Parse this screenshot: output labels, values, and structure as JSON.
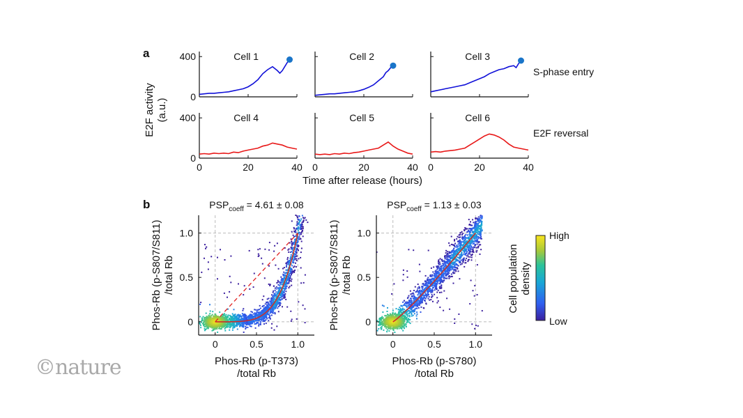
{
  "watermark": "©nature",
  "colors": {
    "sphase": "#1010d8",
    "reversal": "#e81818",
    "endpoint": "#1a75c9",
    "fit": "#cc2b2b",
    "dashed": "#e02020"
  },
  "chart_data": [
    {
      "panel": "a",
      "type": "line",
      "ylabel": "E2F activity\n(a.u.)",
      "xlabel": "Time after release (hours)",
      "xlim": [
        0,
        40
      ],
      "ylim": [
        0,
        450
      ],
      "xticks": [
        0,
        20,
        40
      ],
      "yticks": [
        0,
        400
      ],
      "row_labels": [
        "S-phase entry",
        "E2F reversal"
      ],
      "cells": [
        {
          "label": "Cell 1",
          "row": 0,
          "color": "sphase",
          "endpoint": [
            37,
            370
          ],
          "x": [
            0,
            2,
            4,
            6,
            8,
            10,
            12,
            14,
            16,
            18,
            20,
            22,
            24,
            26,
            28,
            30,
            32,
            33,
            34,
            35,
            36,
            37
          ],
          "y": [
            25,
            30,
            35,
            35,
            40,
            45,
            50,
            60,
            70,
            80,
            100,
            130,
            170,
            230,
            270,
            300,
            260,
            235,
            260,
            300,
            340,
            370
          ]
        },
        {
          "label": "Cell 2",
          "row": 0,
          "color": "sphase",
          "endpoint": [
            32,
            310
          ],
          "x": [
            0,
            2,
            4,
            6,
            8,
            10,
            12,
            14,
            16,
            18,
            20,
            22,
            24,
            26,
            28,
            29,
            30,
            31,
            32
          ],
          "y": [
            15,
            20,
            25,
            30,
            30,
            35,
            40,
            45,
            50,
            60,
            75,
            95,
            120,
            160,
            200,
            240,
            260,
            290,
            310
          ]
        },
        {
          "label": "Cell 3",
          "row": 0,
          "color": "sphase",
          "endpoint": [
            37,
            360
          ],
          "x": [
            0,
            2,
            4,
            6,
            8,
            10,
            12,
            14,
            16,
            18,
            20,
            22,
            24,
            26,
            28,
            30,
            32,
            34,
            35,
            36,
            37
          ],
          "y": [
            50,
            60,
            70,
            80,
            90,
            100,
            110,
            120,
            140,
            160,
            180,
            200,
            230,
            250,
            270,
            280,
            300,
            310,
            290,
            330,
            360
          ]
        },
        {
          "label": "Cell 4",
          "row": 1,
          "color": "reversal",
          "x": [
            0,
            2,
            4,
            6,
            8,
            10,
            12,
            14,
            16,
            18,
            20,
            22,
            24,
            26,
            28,
            30,
            32,
            34,
            36,
            38,
            40
          ],
          "y": [
            40,
            45,
            40,
            50,
            45,
            50,
            45,
            60,
            55,
            70,
            80,
            90,
            100,
            120,
            130,
            150,
            140,
            130,
            110,
            100,
            90
          ]
        },
        {
          "label": "Cell 5",
          "row": 1,
          "color": "reversal",
          "x": [
            0,
            2,
            4,
            6,
            8,
            10,
            12,
            14,
            16,
            18,
            20,
            22,
            24,
            26,
            28,
            30,
            32,
            34,
            36,
            38,
            40
          ],
          "y": [
            40,
            35,
            40,
            35,
            45,
            40,
            50,
            45,
            55,
            60,
            70,
            80,
            90,
            100,
            130,
            160,
            120,
            90,
            70,
            50,
            40
          ]
        },
        {
          "label": "Cell 6",
          "row": 1,
          "color": "reversal",
          "x": [
            0,
            2,
            4,
            6,
            8,
            10,
            12,
            14,
            16,
            18,
            20,
            22,
            24,
            26,
            28,
            30,
            32,
            34,
            36,
            38,
            40
          ],
          "y": [
            60,
            65,
            60,
            70,
            75,
            80,
            90,
            100,
            130,
            160,
            190,
            220,
            240,
            230,
            210,
            180,
            140,
            110,
            100,
            90,
            80
          ]
        }
      ]
    },
    {
      "panel": "b",
      "type": "scatter",
      "title_prefix": "PSP",
      "title_sub": "coeff",
      "title_value": " = 4.61 ± 0.08",
      "xlabel_1": "Phos-Rb (p-T373)",
      "xlabel_2": "/total Rb",
      "ylabel_1": "Phos-Rb (p-S807/S811)",
      "ylabel_2": "/total Rb",
      "xlim": [
        -0.2,
        1.2
      ],
      "ylim": [
        -0.15,
        1.2
      ],
      "xticks": [
        0,
        0.5,
        1.0
      ],
      "yticks": [
        0,
        0.5,
        1.0
      ],
      "xtick_labels": [
        "0",
        "0.5",
        "1.0"
      ],
      "ytick_labels": [
        "0",
        "0.5",
        "1.0"
      ],
      "fit_power": 4.61,
      "dashed_diagonal": true,
      "seed": 7
    },
    {
      "panel": "b2",
      "type": "scatter",
      "title_prefix": "PSP",
      "title_sub": "coeff",
      "title_value": " = 1.13 ± 0.03",
      "xlabel_1": "Phos-Rb (p-S780)",
      "xlabel_2": "/total Rb",
      "ylabel_1": "Phos-Rb (p-S807/S811)",
      "ylabel_2": "/total Rb",
      "xlim": [
        -0.2,
        1.2
      ],
      "ylim": [
        -0.15,
        1.2
      ],
      "xticks": [
        0,
        0.5,
        1.0
      ],
      "yticks": [
        0,
        0.5,
        1.0
      ],
      "xtick_labels": [
        "0",
        "0.5",
        "1.0"
      ],
      "ytick_labels": [
        "0",
        "0.5",
        "1.0"
      ],
      "fit_power": 1.13,
      "dashed_diagonal": false,
      "seed": 13
    }
  ],
  "colorbar": {
    "label_1": "Cell population",
    "label_2": "density",
    "high": "High",
    "low": "Low"
  },
  "panel_labels": {
    "a": "a",
    "b": "b"
  }
}
